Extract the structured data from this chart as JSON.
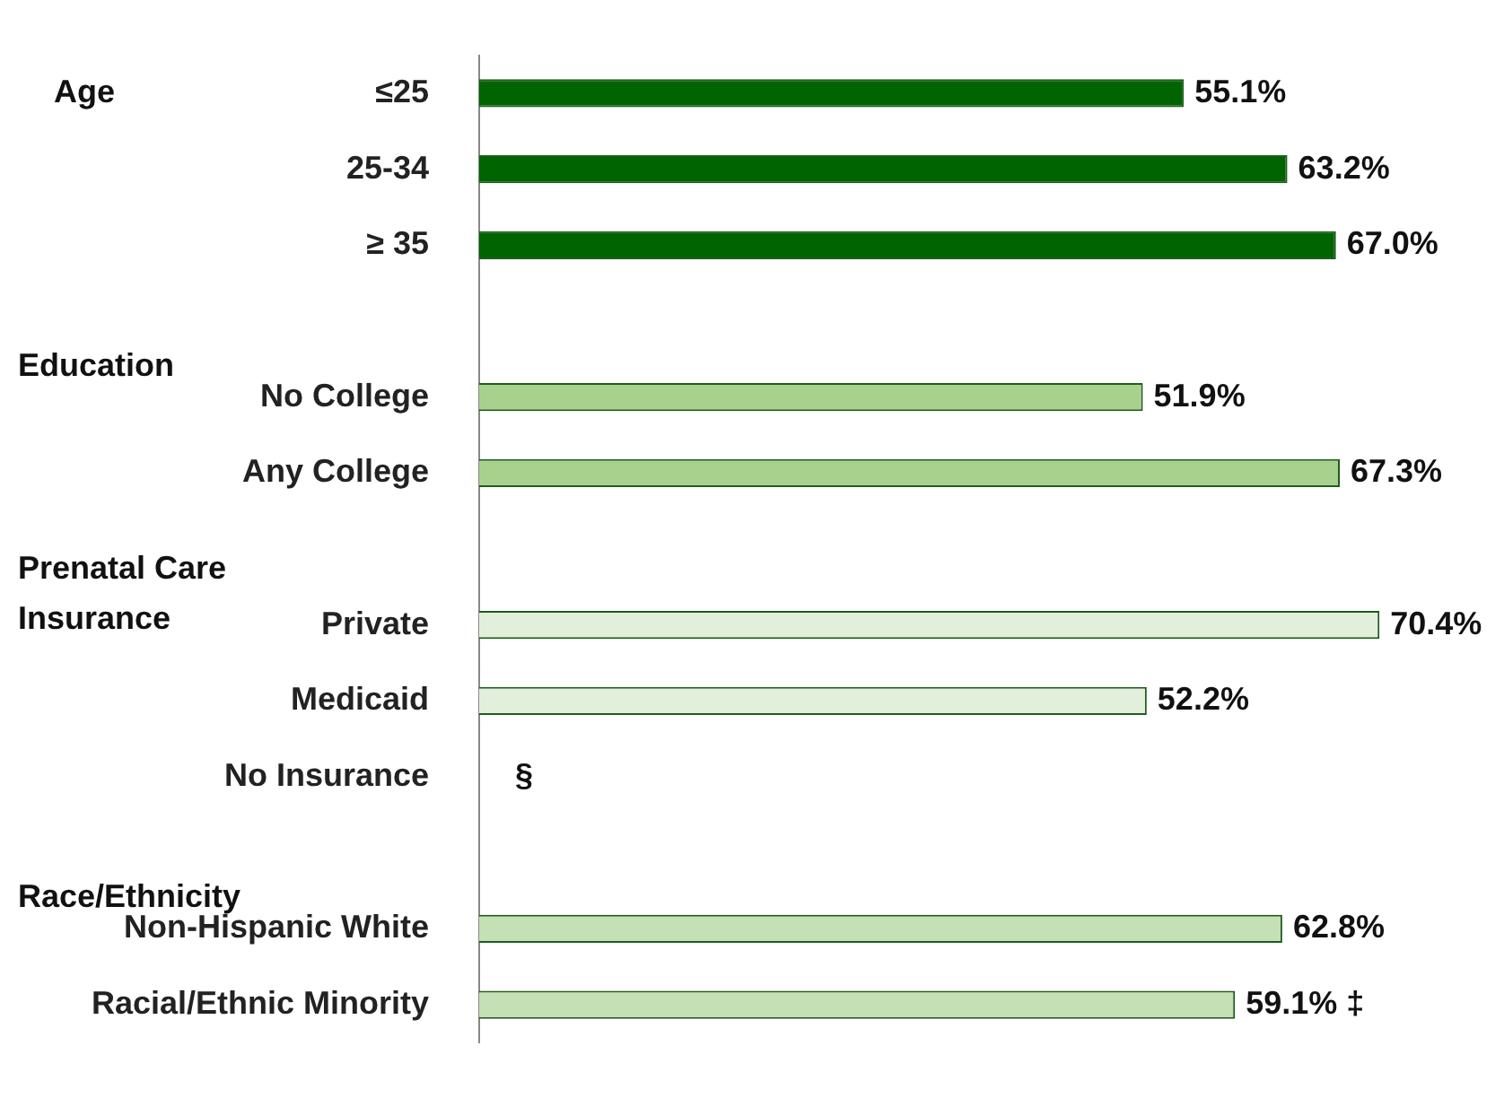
{
  "chart_data": {
    "type": "bar",
    "orientation": "horizontal",
    "categories": [
      "≤25",
      "25-34",
      "≥ 35",
      null,
      "No College",
      "Any College",
      null,
      "Private",
      "Medicaid",
      "No Insurance",
      null,
      "Non-Hispanic White",
      "Racial/Ethnic Minority"
    ],
    "values": [
      55.1,
      63.2,
      67.0,
      null,
      51.9,
      67.3,
      null,
      70.4,
      52.2,
      null,
      null,
      62.8,
      59.1
    ],
    "colors": [
      "#006400",
      "#006400",
      "#006400",
      "#ffffff",
      "#a9d18e",
      "#a9d18e",
      "#ffffff",
      "#e2efda",
      "#e2efda",
      "#e2efda",
      "#ffffff",
      "#c5e0b4",
      "#c5e0b4"
    ],
    "value_labels": [
      "55.1%",
      "63.2%",
      "67.0%",
      null,
      "51.9%",
      "67.3%",
      null,
      "70.4%",
      "52.2%",
      "§",
      null,
      "62.8%",
      "59.1% ‡"
    ],
    "annotations": [
      "Age",
      "Education",
      "Prenatal Care Insurance",
      "Race/Ethnicity"
    ],
    "legend": false
  }
}
